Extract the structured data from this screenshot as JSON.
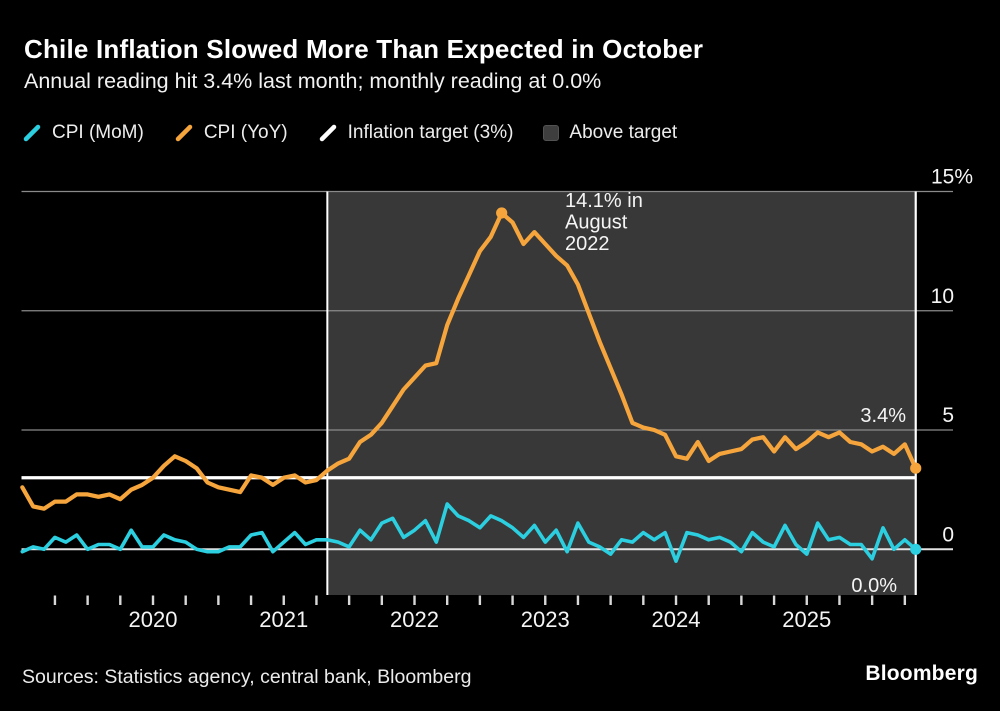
{
  "header": {
    "title": "Chile Inflation Slowed More Than Expected in October",
    "subtitle": "Annual reading hit 3.4% last month; monthly reading at 0.0%"
  },
  "legend": [
    {
      "label": "CPI (MoM)",
      "swatch": "slash",
      "color": "#2BCFE0"
    },
    {
      "label": "CPI (YoY)",
      "swatch": "slash",
      "color": "#F5A53C"
    },
    {
      "label": "Inflation target (3%)",
      "swatch": "slash",
      "color": "#FFFFFF"
    },
    {
      "label": "Above target",
      "swatch": "square",
      "color": "#3E3E3E"
    }
  ],
  "chart_data": {
    "type": "line",
    "frequency": "monthly",
    "unit": "%",
    "x_start": "2018-12",
    "x_end": "2025-10",
    "series": [
      {
        "name": "CPI (MoM)",
        "color": "#2BCFE0",
        "values": [
          -0.1,
          0.1,
          0.0,
          0.5,
          0.3,
          0.6,
          0.0,
          0.2,
          0.2,
          0.0,
          0.8,
          0.1,
          0.1,
          0.6,
          0.4,
          0.3,
          0.0,
          -0.1,
          -0.1,
          0.1,
          0.1,
          0.6,
          0.7,
          -0.1,
          0.3,
          0.7,
          0.2,
          0.4,
          0.4,
          0.3,
          0.1,
          0.8,
          0.4,
          1.1,
          1.3,
          0.5,
          0.8,
          1.2,
          0.3,
          1.9,
          1.4,
          1.2,
          0.9,
          1.4,
          1.2,
          0.9,
          0.5,
          1.0,
          0.3,
          0.8,
          -0.1,
          1.1,
          0.3,
          0.1,
          -0.2,
          0.4,
          0.3,
          0.7,
          0.4,
          0.7,
          -0.5,
          0.7,
          0.6,
          0.4,
          0.5,
          0.3,
          -0.1,
          0.7,
          0.3,
          0.1,
          1.0,
          0.2,
          -0.2,
          1.1,
          0.4,
          0.5,
          0.2,
          0.2,
          -0.4,
          0.9,
          0.0,
          0.4,
          0.0
        ]
      },
      {
        "name": "CPI (YoY)",
        "color": "#F5A53C",
        "values": [
          2.6,
          1.8,
          1.7,
          2.0,
          2.0,
          2.3,
          2.3,
          2.2,
          2.3,
          2.1,
          2.5,
          2.7,
          3.0,
          3.5,
          3.9,
          3.7,
          3.4,
          2.8,
          2.6,
          2.5,
          2.4,
          3.1,
          3.0,
          2.7,
          3.0,
          3.1,
          2.8,
          2.9,
          3.3,
          3.6,
          3.8,
          4.5,
          4.8,
          5.3,
          6.0,
          6.7,
          7.2,
          7.7,
          7.8,
          9.4,
          10.5,
          11.5,
          12.5,
          13.1,
          14.1,
          13.7,
          12.8,
          13.3,
          12.8,
          12.3,
          11.9,
          11.1,
          9.9,
          8.7,
          7.6,
          6.5,
          5.3,
          5.1,
          5.0,
          4.8,
          3.9,
          3.8,
          4.5,
          3.7,
          4.0,
          4.1,
          4.2,
          4.6,
          4.7,
          4.1,
          4.7,
          4.2,
          4.5,
          4.9,
          4.7,
          4.9,
          4.5,
          4.4,
          4.1,
          4.3,
          4.0,
          4.4,
          3.4
        ]
      }
    ],
    "target_line": {
      "label": "Inflation target (3%)",
      "value": 3,
      "color": "#FFFFFF"
    },
    "shade": {
      "label": "Above target",
      "from": "2021-05",
      "to": "2025-10",
      "color": "#383838"
    },
    "yaxis": {
      "ticks": [
        {
          "value": 15,
          "label": "15%"
        },
        {
          "value": 10,
          "label": "10"
        },
        {
          "value": 5,
          "label": "5"
        },
        {
          "value": 0,
          "label": "0"
        }
      ],
      "range": [
        -2,
        15.4
      ],
      "grid": true,
      "side": "right"
    },
    "xaxis": {
      "year_labels": [
        "2020",
        "2021",
        "2022",
        "2023",
        "2024",
        "2025"
      ],
      "minor_ticks": "quarterly"
    },
    "markers": [
      {
        "series": "CPI (YoY)",
        "month": "2022-08",
        "value": 14.1,
        "name": "peak-marker"
      },
      {
        "series": "CPI (YoY)",
        "month": "2025-10",
        "value": 3.4,
        "name": "yoy-end-marker"
      },
      {
        "series": "CPI (MoM)",
        "month": "2025-10",
        "value": 0.0,
        "name": "mom-end-marker"
      }
    ],
    "annotations": [
      {
        "lines": [
          "14.1% in",
          "August",
          "2022"
        ],
        "name": "peak-annotation"
      },
      {
        "lines": [
          "3.4%"
        ],
        "name": "yoy-latest-annotation"
      },
      {
        "lines": [
          "0.0%"
        ],
        "name": "mom-latest-annotation"
      }
    ]
  },
  "footer": {
    "sources": "Sources: Statistics agency, central bank, Bloomberg",
    "brand": "Bloomberg"
  }
}
